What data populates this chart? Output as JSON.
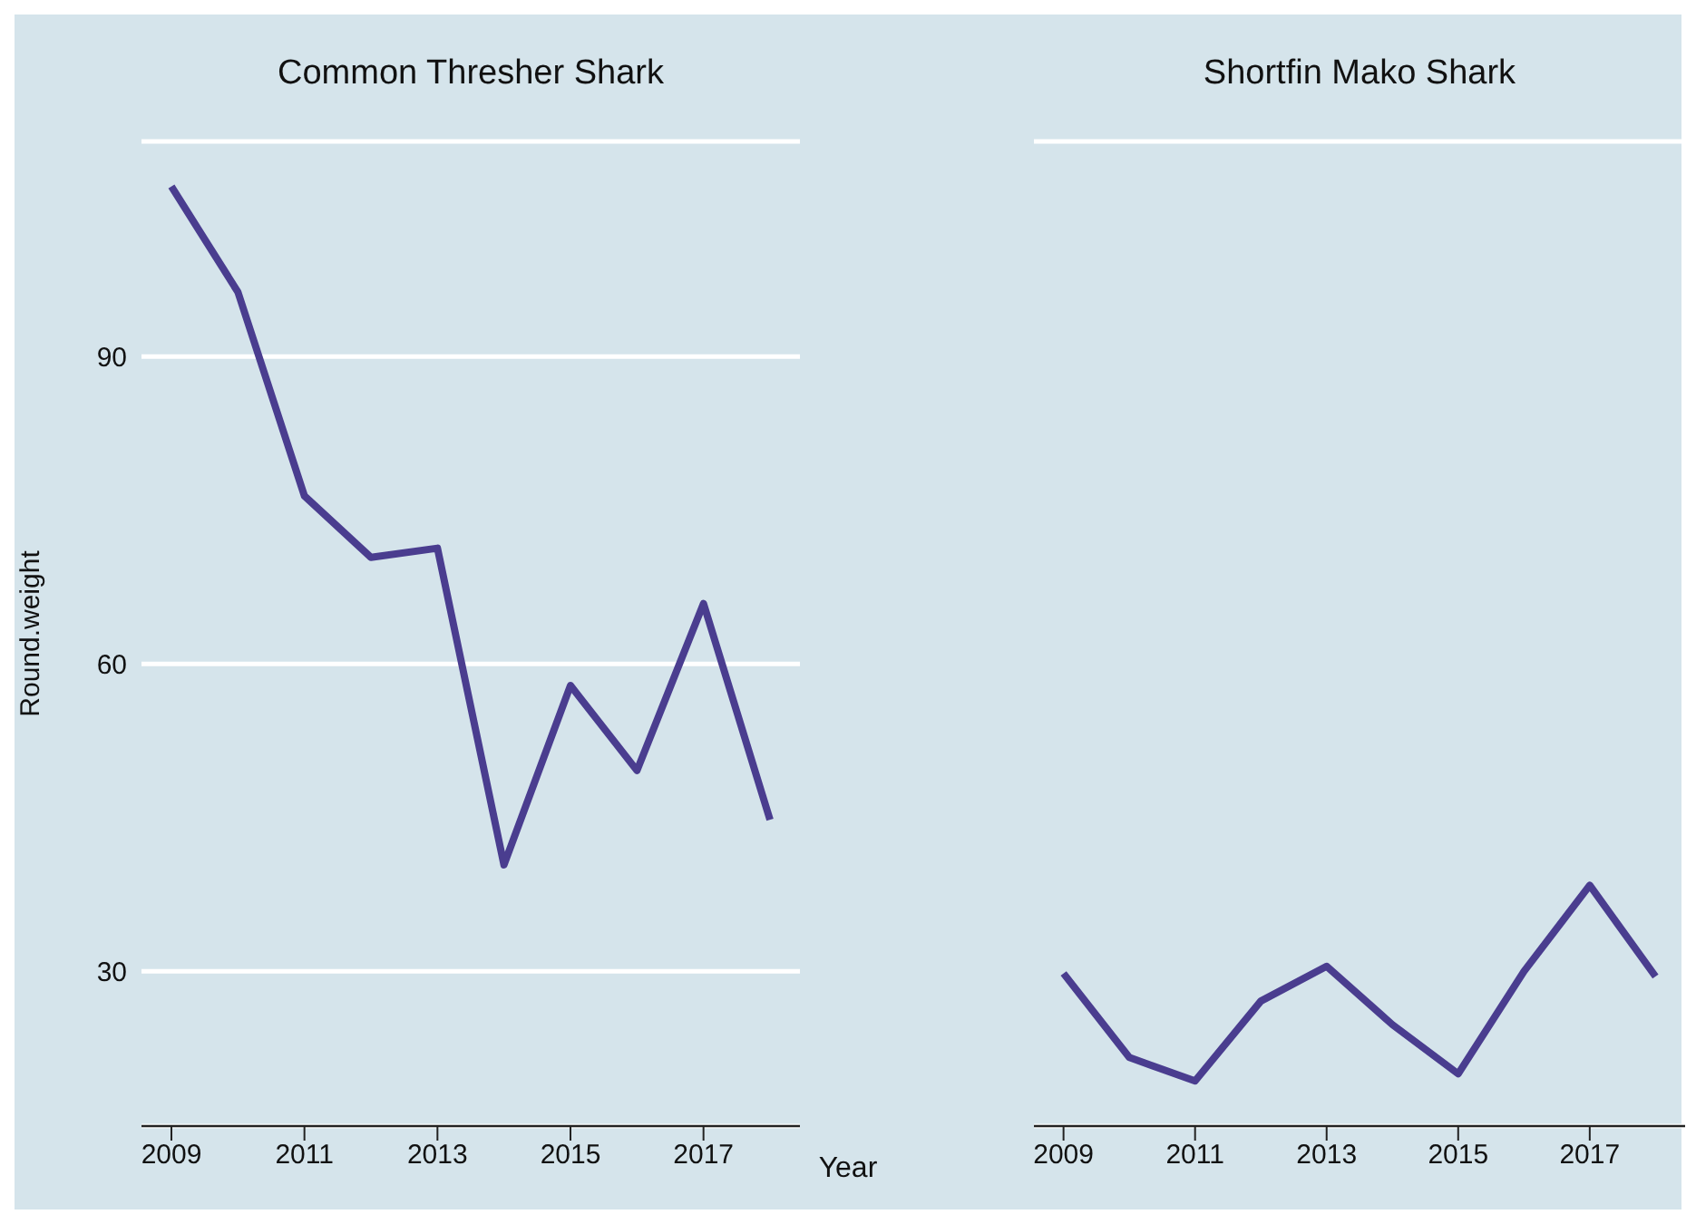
{
  "chart_data": [
    {
      "type": "line",
      "title": "Common Thresher Shark",
      "xlabel": "Year",
      "ylabel": "Round.weight",
      "x": [
        2009,
        2010,
        2011,
        2012,
        2013,
        2014,
        2015,
        2016,
        2017,
        2018
      ],
      "series": [
        {
          "color": "#4a3d8f",
          "values": [
            106.6,
            96.3,
            76.4,
            70.4,
            71.3,
            40.4,
            57.9,
            49.6,
            65.9,
            44.8
          ]
        }
      ],
      "xlim": [
        2008.55,
        2018.45
      ],
      "xticks": [
        2009,
        2011,
        2013,
        2015,
        2017
      ],
      "ylim": [
        14.9,
        111
      ],
      "yticks": [
        30,
        60,
        90
      ],
      "grid": "y",
      "legend": false,
      "marker": "none",
      "line_style": "solid"
    },
    {
      "type": "line",
      "title": "Shortfin Mako Shark",
      "x": [
        2009,
        2010,
        2011,
        2012,
        2013,
        2014,
        2015,
        2016,
        2017,
        2018
      ],
      "series": [
        {
          "color": "#4a3d8f",
          "values": [
            29.8,
            21.6,
            19.3,
            27.1,
            30.5,
            24.8,
            20.0,
            30.0,
            38.4,
            29.5
          ]
        }
      ],
      "xlim": [
        2008.55,
        2018.45
      ],
      "xticks": [
        2009,
        2011,
        2013,
        2015,
        2017
      ],
      "ylim": [
        14.9,
        111
      ],
      "yticks": [
        30,
        60,
        90
      ],
      "grid": "y",
      "legend": false,
      "marker": "none",
      "line_style": "solid",
      "tick_labels": "x"
    }
  ]
}
